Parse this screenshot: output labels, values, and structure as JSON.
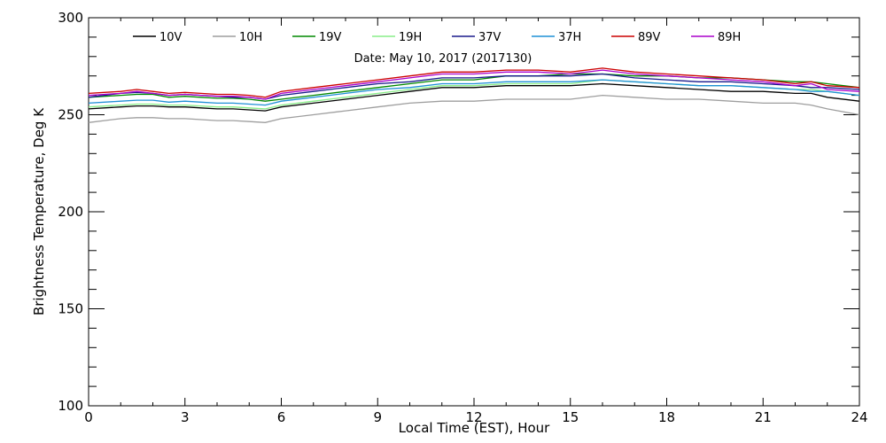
{
  "chart_data": {
    "type": "line",
    "title": "Date: May 10, 2017 (2017130)",
    "xlabel": "Local Time (EST), Hour",
    "ylabel": "Brightness Temperature, Deg K",
    "xlim": [
      0,
      24
    ],
    "ylim": [
      100,
      300
    ],
    "xticks": [
      0,
      3,
      6,
      9,
      12,
      15,
      18,
      21,
      24
    ],
    "yticks": [
      100,
      150,
      200,
      250,
      300
    ],
    "grid": false,
    "legend_position": "top",
    "x": [
      0,
      1,
      1.5,
      2,
      2.5,
      3,
      3.5,
      4,
      4.5,
      5,
      5.5,
      6,
      7,
      8,
      9,
      10,
      11,
      12,
      13,
      14,
      15,
      16,
      17,
      18,
      19,
      20,
      21,
      22,
      22.5,
      23,
      24
    ],
    "series": [
      {
        "name": "10V",
        "color": "#000000",
        "values": [
          253,
          254,
          254.5,
          254.5,
          254,
          254,
          253.5,
          253,
          253,
          252.5,
          252,
          254,
          256,
          258,
          260,
          262,
          264,
          264,
          265,
          265,
          265,
          266,
          265,
          264,
          263,
          262,
          262,
          261,
          261,
          259,
          257
        ]
      },
      {
        "name": "10H",
        "color": "#9e9e9e",
        "values": [
          246,
          248,
          248.5,
          248.5,
          248,
          248,
          247.5,
          247,
          247,
          246.5,
          246,
          248,
          250,
          252,
          254,
          256,
          257,
          257,
          258,
          258,
          258,
          260,
          259,
          258,
          258,
          257,
          256,
          256,
          255,
          253,
          250
        ]
      },
      {
        "name": "19V",
        "color": "#008800",
        "values": [
          259,
          260,
          260.5,
          260.5,
          259,
          259.5,
          259,
          258.5,
          258.5,
          258,
          257,
          258,
          260,
          262,
          264,
          266,
          268,
          268,
          270,
          270,
          271,
          271,
          270,
          270,
          269,
          269,
          268,
          267,
          267,
          266,
          264
        ]
      },
      {
        "name": "19H",
        "color": "#88ee88",
        "values": [
          254,
          255,
          255.5,
          255.5,
          255,
          255,
          254.5,
          254,
          254,
          253.5,
          253,
          255,
          257,
          259,
          261,
          263,
          265,
          265,
          266,
          266,
          266,
          268,
          267,
          266,
          265,
          265,
          264,
          263,
          263,
          262,
          260
        ]
      },
      {
        "name": "37V",
        "color": "#1a1a8c",
        "values": [
          259,
          261,
          261.5,
          261,
          260,
          260.5,
          260,
          259.5,
          259,
          259,
          258,
          260,
          262,
          264,
          266,
          267,
          269,
          269,
          270,
          270,
          270,
          271,
          269,
          268,
          267,
          267,
          266,
          265,
          264,
          264,
          263
        ]
      },
      {
        "name": "37H",
        "color": "#1f90d6",
        "values": [
          256,
          257,
          257.5,
          257.5,
          256.5,
          257,
          256.5,
          256,
          256,
          255.5,
          255,
          257,
          259,
          261,
          263,
          264,
          266,
          266,
          267,
          267,
          267,
          268,
          267,
          266,
          265,
          265,
          264,
          263,
          262,
          262,
          260
        ]
      },
      {
        "name": "89V",
        "color": "#cc0000",
        "values": [
          261,
          262,
          263,
          262,
          261,
          261.5,
          261,
          260.5,
          260.5,
          260,
          259,
          262,
          264,
          266,
          268,
          270,
          272,
          272,
          273,
          273,
          272,
          274,
          272,
          271,
          270,
          269,
          268,
          266,
          267,
          265,
          264
        ]
      },
      {
        "name": "89H",
        "color": "#aa00cc",
        "values": [
          260,
          261,
          262,
          261,
          260,
          260.5,
          260,
          259.5,
          259.5,
          259,
          258,
          261,
          263,
          265,
          267,
          269,
          271,
          271,
          272,
          272,
          271,
          273,
          271,
          270,
          269,
          268,
          267,
          265,
          266,
          263,
          262
        ]
      }
    ]
  }
}
